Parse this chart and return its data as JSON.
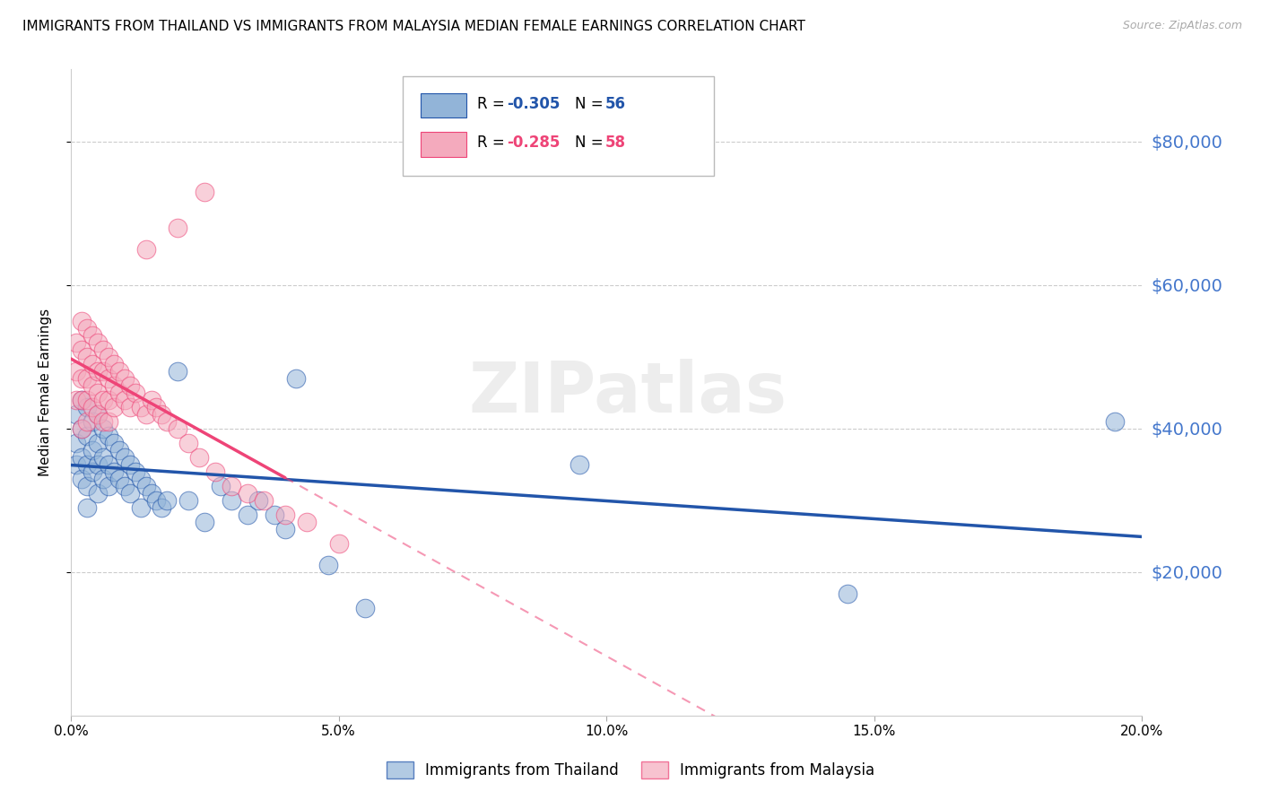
{
  "title": "IMMIGRANTS FROM THAILAND VS IMMIGRANTS FROM MALAYSIA MEDIAN FEMALE EARNINGS CORRELATION CHART",
  "source": "Source: ZipAtlas.com",
  "ylabel": "Median Female Earnings",
  "xlim": [
    0.0,
    0.2
  ],
  "ylim": [
    0,
    90000
  ],
  "yticks": [
    20000,
    40000,
    60000,
    80000
  ],
  "ytick_labels": [
    "$20,000",
    "$40,000",
    "$60,000",
    "$80,000"
  ],
  "xticks": [
    0.0,
    0.05,
    0.1,
    0.15,
    0.2
  ],
  "xtick_labels": [
    "0.0%",
    "5.0%",
    "10.0%",
    "15.0%",
    "20.0%"
  ],
  "legend_r1": "R = -0.305",
  "legend_n1": "N = 56",
  "legend_r2": "R = -0.285",
  "legend_n2": "N = 58",
  "series1_label": "Immigrants from Thailand",
  "series2_label": "Immigrants from Malaysia",
  "series1_color": "#92B4D8",
  "series2_color": "#F4AABD",
  "trendline1_color": "#2255AA",
  "trendline2_color": "#EE4477",
  "watermark": "ZIPatlas",
  "axis_color": "#4477CC",
  "background_color": "#FFFFFF",
  "thailand_x": [
    0.001,
    0.001,
    0.001,
    0.002,
    0.002,
    0.002,
    0.002,
    0.003,
    0.003,
    0.003,
    0.003,
    0.003,
    0.004,
    0.004,
    0.004,
    0.005,
    0.005,
    0.005,
    0.005,
    0.006,
    0.006,
    0.006,
    0.007,
    0.007,
    0.007,
    0.008,
    0.008,
    0.009,
    0.009,
    0.01,
    0.01,
    0.011,
    0.011,
    0.012,
    0.013,
    0.013,
    0.014,
    0.015,
    0.016,
    0.017,
    0.018,
    0.02,
    0.022,
    0.025,
    0.028,
    0.03,
    0.033,
    0.035,
    0.038,
    0.04,
    0.042,
    0.048,
    0.055,
    0.095,
    0.145,
    0.195
  ],
  "thailand_y": [
    42000,
    38000,
    35000,
    44000,
    40000,
    36000,
    33000,
    43000,
    39000,
    35000,
    32000,
    29000,
    41000,
    37000,
    34000,
    42000,
    38000,
    35000,
    31000,
    40000,
    36000,
    33000,
    39000,
    35000,
    32000,
    38000,
    34000,
    37000,
    33000,
    36000,
    32000,
    35000,
    31000,
    34000,
    33000,
    29000,
    32000,
    31000,
    30000,
    29000,
    30000,
    48000,
    30000,
    27000,
    32000,
    30000,
    28000,
    30000,
    28000,
    26000,
    47000,
    21000,
    15000,
    35000,
    17000,
    41000
  ],
  "malaysia_x": [
    0.001,
    0.001,
    0.001,
    0.002,
    0.002,
    0.002,
    0.002,
    0.002,
    0.003,
    0.003,
    0.003,
    0.003,
    0.003,
    0.004,
    0.004,
    0.004,
    0.004,
    0.005,
    0.005,
    0.005,
    0.005,
    0.006,
    0.006,
    0.006,
    0.006,
    0.007,
    0.007,
    0.007,
    0.007,
    0.008,
    0.008,
    0.008,
    0.009,
    0.009,
    0.01,
    0.01,
    0.011,
    0.011,
    0.012,
    0.013,
    0.014,
    0.015,
    0.016,
    0.017,
    0.018,
    0.02,
    0.022,
    0.024,
    0.027,
    0.03,
    0.033,
    0.036,
    0.04,
    0.044,
    0.05,
    0.02,
    0.025,
    0.014
  ],
  "malaysia_y": [
    52000,
    48000,
    44000,
    55000,
    51000,
    47000,
    44000,
    40000,
    54000,
    50000,
    47000,
    44000,
    41000,
    53000,
    49000,
    46000,
    43000,
    52000,
    48000,
    45000,
    42000,
    51000,
    48000,
    44000,
    41000,
    50000,
    47000,
    44000,
    41000,
    49000,
    46000,
    43000,
    48000,
    45000,
    47000,
    44000,
    46000,
    43000,
    45000,
    43000,
    42000,
    44000,
    43000,
    42000,
    41000,
    40000,
    38000,
    36000,
    34000,
    32000,
    31000,
    30000,
    28000,
    27000,
    24000,
    68000,
    73000,
    65000
  ],
  "trendline_malaysia_x0": 0.0,
  "trendline_malaysia_x_solid_end": 0.04,
  "trendline_malaysia_x_dash_end": 0.2,
  "trendline_thailand_x0": 0.0,
  "trendline_thailand_x1": 0.2
}
